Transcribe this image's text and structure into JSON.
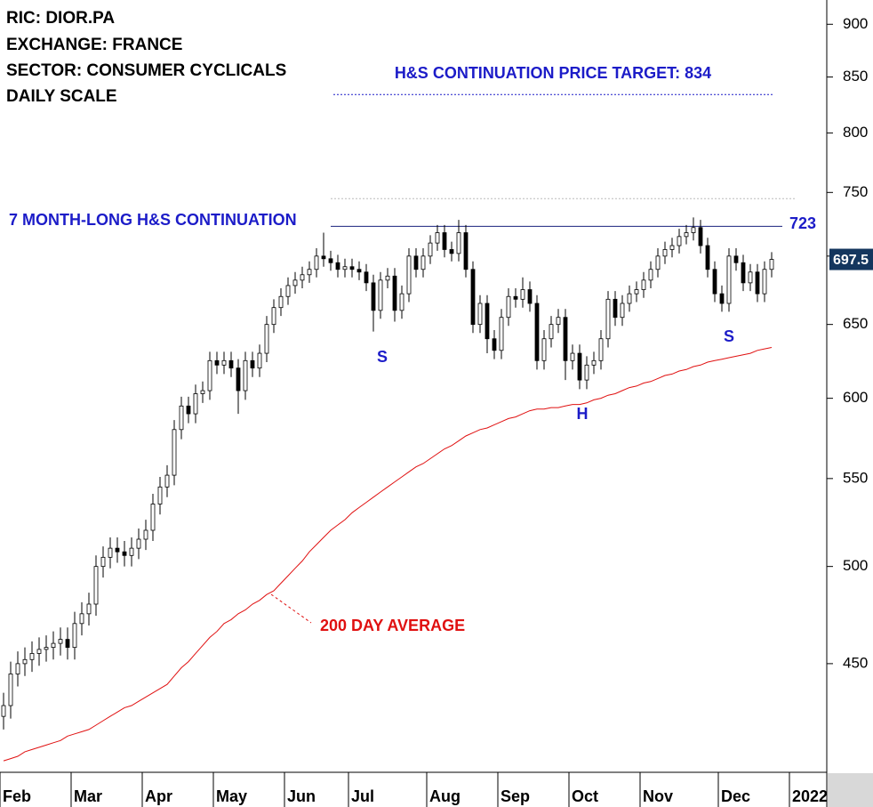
{
  "chart_data": {
    "type": "candlestick",
    "title_lines": [
      "RIC: DIOR.PA",
      "EXCHANGE: FRANCE",
      "SECTOR: CONSUMER CYCLICALS",
      "DAILY SCALE"
    ],
    "target_label": "H&S CONTINUATION PRICE TARGET: 834",
    "target_value": 834,
    "pattern_label": "7 MONTH-LONG H&S CONTINUATION",
    "neckline": 723,
    "dotted_level": 745,
    "pattern_points": [
      "S",
      "H",
      "S"
    ],
    "ma_label": "200 DAY AVERAGE",
    "log_scale": true,
    "ylim": [
      400,
      924
    ],
    "yticks": [
      450,
      500,
      550,
      600,
      650,
      700,
      750,
      800,
      850,
      900
    ],
    "categories": [
      "Feb",
      null,
      null,
      null,
      null,
      null,
      null,
      null,
      null,
      null,
      "Mar",
      null,
      null,
      null,
      null,
      null,
      null,
      null,
      null,
      null,
      "Apr",
      null,
      null,
      null,
      null,
      null,
      null,
      null,
      null,
      null,
      "May",
      null,
      null,
      null,
      null,
      null,
      null,
      null,
      null,
      null,
      "Jun",
      null,
      null,
      null,
      null,
      null,
      null,
      null,
      null,
      "Jul",
      null,
      null,
      null,
      null,
      null,
      null,
      null,
      null,
      null,
      null,
      "Aug",
      null,
      null,
      null,
      null,
      null,
      null,
      null,
      null,
      null,
      "Sep",
      null,
      null,
      null,
      null,
      null,
      null,
      null,
      null,
      null,
      "Oct",
      null,
      null,
      null,
      null,
      null,
      null,
      null,
      null,
      null,
      "Nov",
      null,
      null,
      null,
      null,
      null,
      null,
      null,
      null,
      null,
      null,
      "Dec",
      null,
      null,
      null,
      null,
      null,
      null,
      null,
      null,
      null,
      "2022"
    ],
    "open": [
      425,
      430,
      445,
      450,
      452,
      455,
      457,
      458,
      460,
      462,
      458,
      470,
      475,
      480,
      500,
      505,
      510,
      508,
      506,
      510,
      515,
      520,
      535,
      545,
      552,
      580,
      595,
      590,
      603,
      605,
      625,
      622,
      625,
      620,
      605,
      625,
      620,
      630,
      650,
      662,
      670,
      678,
      682,
      686,
      690,
      700,
      698,
      695,
      690,
      692,
      690,
      688,
      680,
      660,
      682,
      685,
      660,
      672,
      700,
      690,
      700,
      710,
      718,
      705,
      702,
      718,
      690,
      650,
      665,
      640,
      632,
      655,
      670,
      668,
      675,
      665,
      625,
      640,
      650,
      655,
      625,
      630,
      612,
      622,
      625,
      640,
      668,
      655,
      665,
      672,
      675,
      682,
      690,
      700,
      705,
      708,
      715,
      718,
      722,
      708,
      690,
      672,
      665,
      700,
      695,
      680,
      688,
      672,
      690,
      null,
      null,
      null
    ],
    "high": [
      436,
      451,
      456,
      458,
      461,
      463,
      464,
      466,
      468,
      468,
      476,
      481,
      486,
      506,
      511,
      516,
      516,
      514,
      516,
      521,
      526,
      541,
      551,
      558,
      586,
      601,
      601,
      609,
      611,
      631,
      631,
      631,
      631,
      626,
      631,
      631,
      636,
      656,
      668,
      676,
      684,
      688,
      692,
      696,
      706,
      718,
      704,
      701,
      698,
      698,
      696,
      694,
      686,
      688,
      691,
      691,
      678,
      706,
      706,
      706,
      716,
      724,
      724,
      711,
      728,
      724,
      696,
      671,
      671,
      646,
      661,
      676,
      676,
      684,
      681,
      671,
      646,
      656,
      661,
      661,
      636,
      636,
      628,
      631,
      646,
      674,
      674,
      671,
      678,
      681,
      688,
      696,
      706,
      711,
      714,
      721,
      724,
      730,
      728,
      714,
      696,
      678,
      706,
      706,
      701,
      694,
      694,
      696,
      703,
      null,
      null,
      null
    ],
    "low": [
      419,
      424,
      439,
      444,
      446,
      449,
      451,
      452,
      454,
      452,
      452,
      464,
      469,
      474,
      494,
      499,
      502,
      500,
      500,
      504,
      509,
      514,
      529,
      539,
      546,
      574,
      584,
      584,
      597,
      599,
      616,
      616,
      614,
      590,
      599,
      614,
      614,
      624,
      644,
      656,
      664,
      672,
      676,
      680,
      684,
      692,
      689,
      684,
      684,
      684,
      682,
      674,
      645,
      654,
      676,
      652,
      654,
      666,
      684,
      684,
      694,
      704,
      699,
      696,
      696,
      684,
      644,
      644,
      630,
      626,
      626,
      649,
      662,
      662,
      659,
      619,
      619,
      634,
      644,
      612,
      619,
      606,
      606,
      616,
      619,
      634,
      649,
      649,
      659,
      666,
      669,
      676,
      684,
      694,
      699,
      702,
      709,
      712,
      702,
      684,
      666,
      659,
      659,
      689,
      674,
      674,
      666,
      666,
      684,
      null,
      null,
      null
    ],
    "close": [
      430,
      445,
      450,
      452,
      455,
      457,
      458,
      460,
      462,
      458,
      470,
      475,
      480,
      500,
      505,
      510,
      508,
      506,
      510,
      515,
      520,
      535,
      545,
      552,
      580,
      595,
      590,
      603,
      605,
      625,
      622,
      625,
      620,
      605,
      625,
      620,
      630,
      650,
      662,
      670,
      678,
      682,
      686,
      690,
      700,
      698,
      695,
      690,
      692,
      690,
      688,
      680,
      660,
      682,
      685,
      660,
      672,
      700,
      690,
      700,
      710,
      718,
      705,
      702,
      718,
      690,
      650,
      665,
      640,
      632,
      655,
      670,
      668,
      675,
      665,
      625,
      640,
      650,
      655,
      625,
      630,
      612,
      622,
      625,
      640,
      668,
      655,
      665,
      672,
      675,
      682,
      690,
      700,
      705,
      708,
      715,
      718,
      722,
      708,
      690,
      672,
      665,
      700,
      695,
      680,
      688,
      672,
      690,
      697.5,
      null,
      null,
      null
    ],
    "ma": [
      405,
      406,
      407,
      409,
      410,
      411,
      412,
      413,
      414,
      416,
      417,
      418,
      419,
      421,
      423,
      425,
      427,
      429,
      430,
      432,
      434,
      436,
      438,
      440,
      444,
      448,
      451,
      455,
      459,
      463,
      466,
      470,
      472,
      475,
      477,
      480,
      482,
      485,
      487,
      491,
      495,
      499,
      503,
      508,
      512,
      516,
      520,
      523,
      526,
      530,
      533,
      536,
      539,
      542,
      545,
      548,
      551,
      554,
      557,
      559,
      562,
      565,
      568,
      570,
      573,
      576,
      578,
      580,
      581,
      583,
      585,
      587,
      588,
      590,
      592,
      593,
      593,
      594,
      594,
      595,
      596,
      596,
      597,
      599,
      600,
      602,
      603,
      605,
      607,
      608,
      610,
      611,
      613,
      615,
      616,
      618,
      619,
      621,
      622,
      624,
      625,
      626,
      627,
      628,
      629,
      630,
      632,
      633,
      634,
      null,
      null,
      null
    ],
    "up_color": "#ffffff",
    "down_color": "#000000",
    "ma_color": "#e01010",
    "annotation_color": "#1c1cc8",
    "neckline_color": "#1a237e",
    "tag_color": "#14365e"
  }
}
